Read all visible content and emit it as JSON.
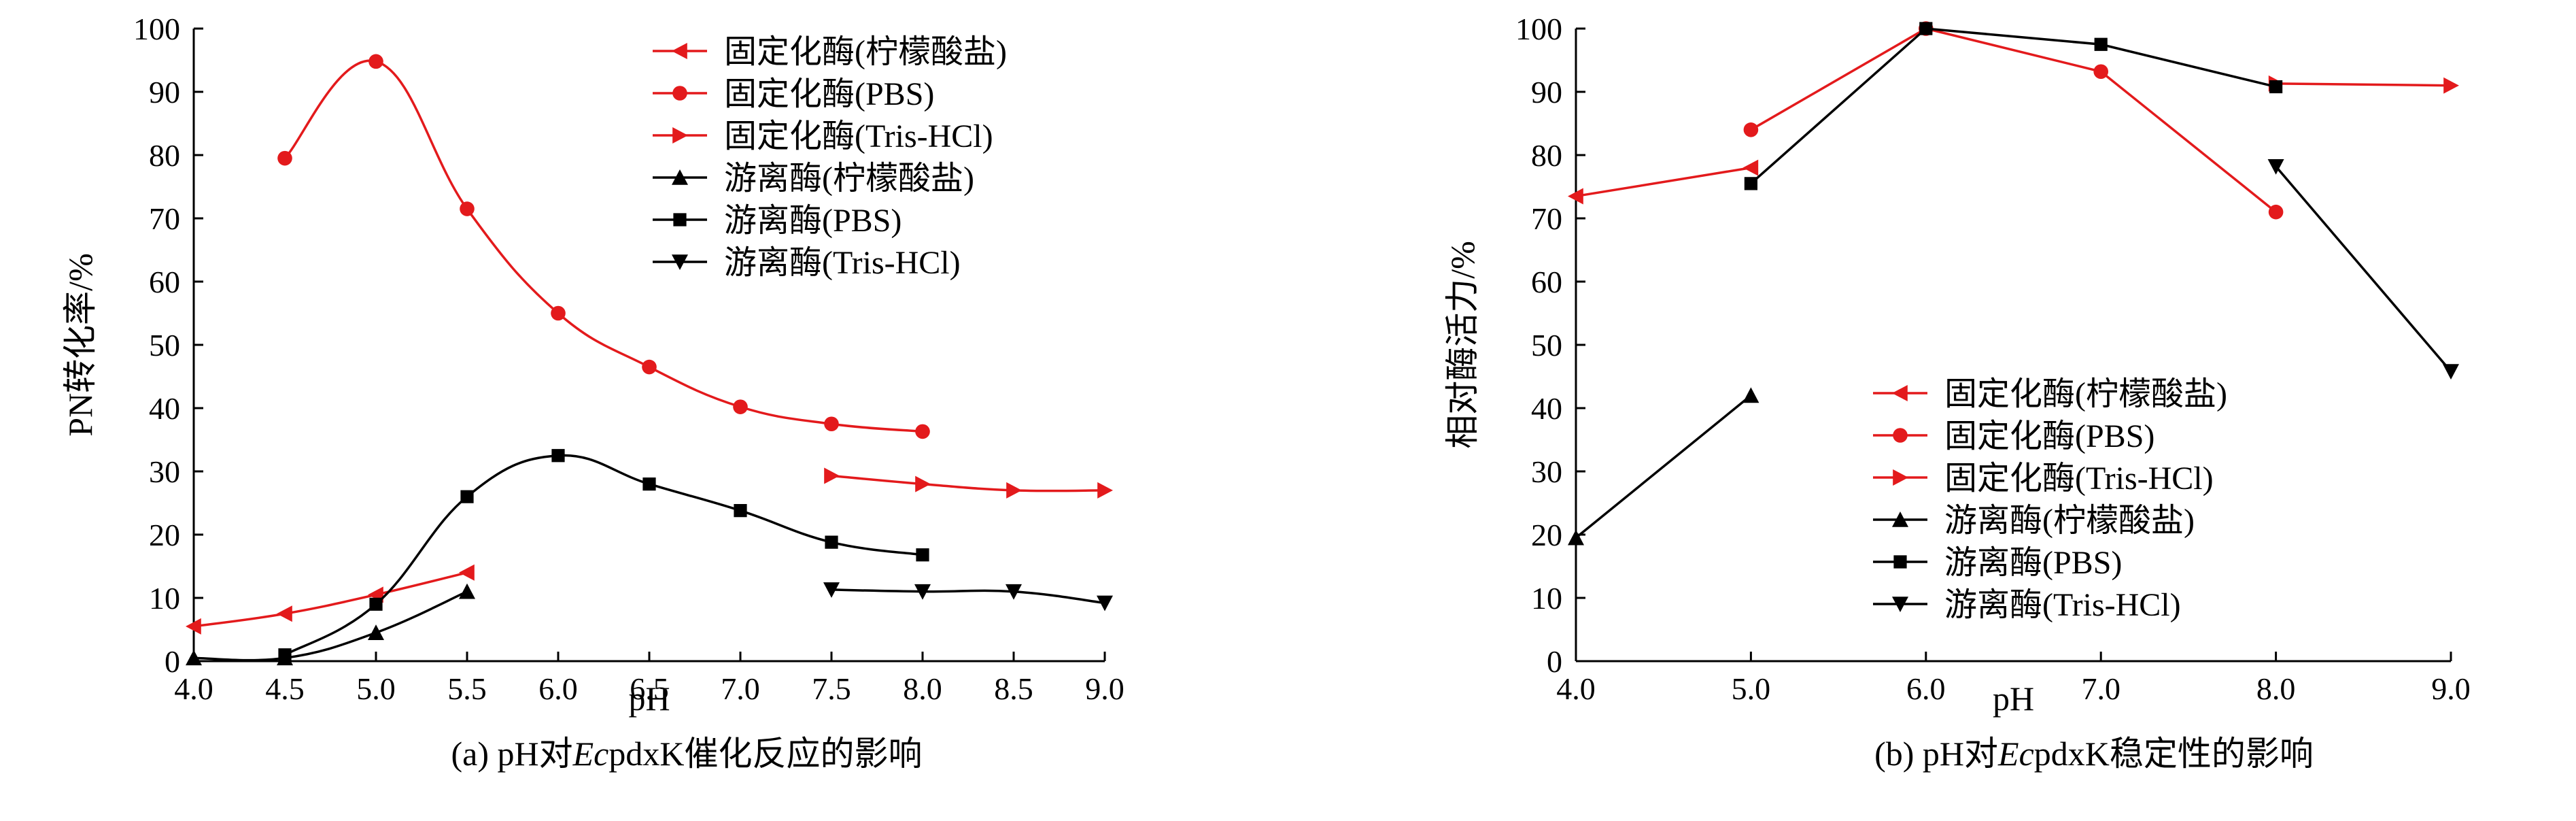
{
  "colors": {
    "immobilized": "#e31a1c",
    "free": "#000000"
  },
  "chart_data": [
    {
      "id": "a",
      "type": "line",
      "caption": {
        "prefix": "(a) pH对",
        "italic": "Ec",
        "suffix": "pdxK催化反应的影响"
      },
      "xlabel": "pH",
      "ylabel": "PN转化率/%",
      "xlim": [
        4.0,
        9.0
      ],
      "ylim": [
        0,
        100
      ],
      "xticks": [
        "4.0",
        "4.5",
        "5.0",
        "5.5",
        "6.0",
        "6.5",
        "7.0",
        "7.5",
        "8.0",
        "8.5",
        "9.0"
      ],
      "yticks": [
        "0",
        "10",
        "20",
        "30",
        "40",
        "50",
        "60",
        "70",
        "80",
        "90",
        "100"
      ],
      "legend_position": "top-right",
      "series": [
        {
          "name": "固定化酶(柠檬酸盐)",
          "color": "#e31a1c",
          "marker": "tri-left",
          "smooth": true,
          "x": [
            4.0,
            4.5,
            5.0,
            5.5
          ],
          "y": [
            5.5,
            7.5,
            10.5,
            14.0
          ]
        },
        {
          "name": "固定化酶(PBS)",
          "color": "#e31a1c",
          "marker": "circle",
          "smooth": true,
          "x": [
            4.5,
            5.0,
            5.5,
            6.0,
            6.5,
            7.0,
            7.5,
            8.0
          ],
          "y": [
            79.5,
            94.8,
            71.5,
            55.0,
            46.5,
            40.2,
            37.5,
            36.3
          ]
        },
        {
          "name": "固定化酶(Tris-HCl)",
          "color": "#e31a1c",
          "marker": "tri-right",
          "smooth": true,
          "x": [
            7.5,
            8.0,
            8.5,
            9.0
          ],
          "y": [
            29.3,
            28.0,
            27.0,
            27.0
          ]
        },
        {
          "name": "游离酶(柠檬酸盐)",
          "color": "#000000",
          "marker": "tri-up",
          "smooth": true,
          "x": [
            4.0,
            4.5,
            5.0,
            5.5
          ],
          "y": [
            0.5,
            0.5,
            4.5,
            11.0
          ]
        },
        {
          "name": "游离酶(PBS)",
          "color": "#000000",
          "marker": "square",
          "smooth": true,
          "x": [
            4.5,
            5.0,
            5.5,
            6.0,
            6.5,
            7.0,
            7.5,
            8.0
          ],
          "y": [
            1.0,
            9.0,
            26.0,
            32.5,
            28.0,
            23.8,
            18.8,
            16.8
          ]
        },
        {
          "name": "游离酶(Tris-HCl)",
          "color": "#000000",
          "marker": "tri-down",
          "smooth": true,
          "x": [
            7.5,
            8.0,
            8.5,
            9.0
          ],
          "y": [
            11.3,
            11.0,
            11.0,
            9.2
          ]
        }
      ]
    },
    {
      "id": "b",
      "type": "line",
      "caption": {
        "prefix": "(b) pH对",
        "italic": "Ec",
        "suffix": "pdxK稳定性的影响"
      },
      "xlabel": "pH",
      "ylabel": "相对酶活力/%",
      "xlim": [
        4.0,
        9.0
      ],
      "ylim": [
        0,
        100
      ],
      "xticks": [
        "4.0",
        "5.0",
        "6.0",
        "7.0",
        "8.0",
        "9.0"
      ],
      "yticks": [
        "0",
        "10",
        "20",
        "30",
        "40",
        "50",
        "60",
        "70",
        "80",
        "90",
        "100"
      ],
      "legend_position": "lower-center",
      "series": [
        {
          "name": "固定化酶(柠檬酸盐)",
          "color": "#e31a1c",
          "marker": "tri-left",
          "smooth": false,
          "x": [
            4.0,
            5.0
          ],
          "y": [
            73.5,
            78.0
          ]
        },
        {
          "name": "固定化酶(PBS)",
          "color": "#e31a1c",
          "marker": "circle",
          "smooth": false,
          "x": [
            5.0,
            6.0,
            7.0,
            8.0
          ],
          "y": [
            84.0,
            100.0,
            93.2,
            71.0
          ]
        },
        {
          "name": "固定化酶(Tris-HCl)",
          "color": "#e31a1c",
          "marker": "tri-right",
          "smooth": false,
          "x": [
            8.0,
            9.0
          ],
          "y": [
            91.3,
            91.0
          ]
        },
        {
          "name": "游离酶(柠檬酸盐)",
          "color": "#000000",
          "marker": "tri-up",
          "smooth": false,
          "x": [
            4.0,
            5.0
          ],
          "y": [
            19.5,
            42.0
          ]
        },
        {
          "name": "游离酶(PBS)",
          "color": "#000000",
          "marker": "square",
          "smooth": false,
          "x": [
            5.0,
            6.0,
            7.0,
            8.0
          ],
          "y": [
            75.5,
            100.0,
            97.5,
            90.8
          ]
        },
        {
          "name": "游离酶(Tris-HCl)",
          "color": "#000000",
          "marker": "tri-down",
          "smooth": false,
          "x": [
            8.0,
            9.0
          ],
          "y": [
            78.2,
            45.8
          ]
        }
      ]
    }
  ]
}
